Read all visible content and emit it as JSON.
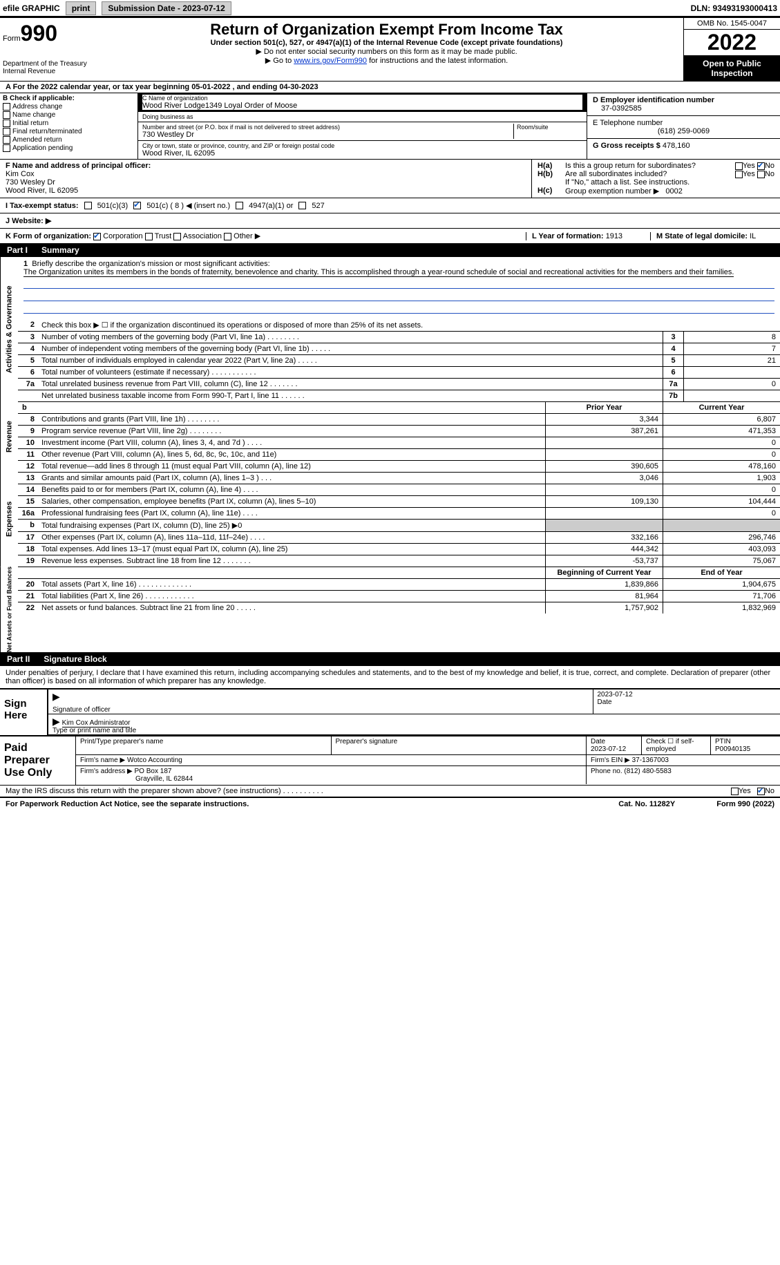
{
  "topbar": {
    "efile_label": "efile GRAPHIC",
    "print_btn": "print",
    "sub_label": "Submission Date - 2023-07-12",
    "dln_label": "DLN: 93493193000413"
  },
  "header": {
    "form_label": "Form",
    "form_num": "990",
    "dept": "Department of the Treasury\nInternal Revenue",
    "title": "Return of Organization Exempt From Income Tax",
    "sub1": "Under section 501(c), 527, or 4947(a)(1) of the Internal Revenue Code (except private foundations)",
    "sub2": "▶ Do not enter social security numbers on this form as it may be made public.",
    "sub3_pre": "▶ Go to ",
    "sub3_link": "www.irs.gov/Form990",
    "sub3_post": " for instructions and the latest information.",
    "omb": "OMB No. 1545-0047",
    "year": "2022",
    "inspect": "Open to Public Inspection"
  },
  "line_a": "A For the 2022 calendar year, or tax year beginning 05-01-2022     , and ending 04-30-2023",
  "box_b": {
    "title": "B Check if applicable:",
    "opts": [
      "Address change",
      "Name change",
      "Initial return",
      "Final return/terminated",
      "Amended return",
      "Application pending"
    ]
  },
  "box_c": {
    "name_lbl": "C Name of organization",
    "name": "Wood River Lodge1349 Loyal Order of Moose",
    "dba_lbl": "Doing business as",
    "dba": "",
    "addr_lbl": "Number and street (or P.O. box if mail is not delivered to street address)",
    "room_lbl": "Room/suite",
    "addr": "730 Westley Dr",
    "city_lbl": "City or town, state or province, country, and ZIP or foreign postal code",
    "city": "Wood River, IL  62095"
  },
  "box_d": {
    "ein_lbl": "D Employer identification number",
    "ein": "37-0392585",
    "tel_lbl": "E Telephone number",
    "tel": "(618) 259-0069",
    "gross_lbl": "G Gross receipts $",
    "gross": "478,160"
  },
  "box_f": {
    "lbl": "F  Name and address of principal officer:",
    "name": "Kim Cox",
    "addr1": "730 Wesley Dr",
    "addr2": "Wood River, IL  62095"
  },
  "box_h": {
    "ha_lbl": "H(a)",
    "ha_txt": "Is this a group return for subordinates?",
    "hb_lbl": "H(b)",
    "hb_txt": "Are all subordinates included?",
    "hb_note": "If \"No,\" attach a list. See instructions.",
    "hc_lbl": "H(c)",
    "hc_txt": "Group exemption number ▶",
    "hc_val": "0002",
    "yes": "Yes",
    "no": "No"
  },
  "row_i": {
    "lbl": "I   Tax-exempt status:",
    "o1": "501(c)(3)",
    "o2": "501(c) (",
    "o2n": "8",
    "o2b": ") ◀ (insert no.)",
    "o3": "4947(a)(1) or",
    "o4": "527"
  },
  "row_j": "J   Website: ▶",
  "row_k": {
    "lbl": "K Form of organization:",
    "o1": "Corporation",
    "o2": "Trust",
    "o3": "Association",
    "o4": "Other ▶",
    "l_lbl": "L Year of formation:",
    "l_val": "1913",
    "m_lbl": "M State of legal domicile:",
    "m_val": "IL"
  },
  "part1": {
    "num": "Part I",
    "title": "Summary"
  },
  "mission": {
    "num": "1",
    "lbl": "Briefly describe the organization's mission or most significant activities:",
    "txt": "The Organization unites its members in the bonds of fraternity, benevolence and charity. This is accomplished through a year-round schedule of social and recreational activities for the members and their families."
  },
  "line2": {
    "num": "2",
    "txt": "Check this box ▶ ☐  if the organization discontinued its operations or disposed of more than 25% of its net assets."
  },
  "gov_lines": [
    {
      "n": "3",
      "d": "Number of voting members of the governing body (Part VI, line 1a)  .   .   .   .   .   .   .   .",
      "bn": "3",
      "v": "8"
    },
    {
      "n": "4",
      "d": "Number of independent voting members of the governing body (Part VI, line 1b)  .   .   .   .   .",
      "bn": "4",
      "v": "7"
    },
    {
      "n": "5",
      "d": "Total number of individuals employed in calendar year 2022 (Part V, line 2a)  .   .   .   .   .",
      "bn": "5",
      "v": "21"
    },
    {
      "n": "6",
      "d": "Total number of volunteers (estimate if necessary)   .   .   .   .   .   .   .   .   .   .   .",
      "bn": "6",
      "v": ""
    },
    {
      "n": "7a",
      "d": "Total unrelated business revenue from Part VIII, column (C), line 12  .   .   .   .   .   .   .",
      "bn": "7a",
      "v": "0"
    },
    {
      "n": "",
      "d": "Net unrelated business taxable income from Form 990-T, Part I, line 11  .   .   .   .   .   .",
      "bn": "7b",
      "v": ""
    }
  ],
  "twocol_hdr": {
    "b": "b",
    "prior": "Prior Year",
    "curr": "Current Year"
  },
  "rev_lines": [
    {
      "n": "8",
      "d": "Contributions and grants (Part VIII, line 1h)  .   .   .   .   .   .   .   .",
      "p": "3,344",
      "c": "6,807"
    },
    {
      "n": "9",
      "d": "Program service revenue (Part VIII, line 2g)  .   .   .   .   .   .   .   .",
      "p": "387,261",
      "c": "471,353"
    },
    {
      "n": "10",
      "d": "Investment income (Part VIII, column (A), lines 3, 4, and 7d )  .   .   .   .",
      "p": "",
      "c": "0"
    },
    {
      "n": "11",
      "d": "Other revenue (Part VIII, column (A), lines 5, 6d, 8c, 9c, 10c, and 11e)",
      "p": "",
      "c": "0"
    },
    {
      "n": "12",
      "d": "Total revenue—add lines 8 through 11 (must equal Part VIII, column (A), line 12)",
      "p": "390,605",
      "c": "478,160"
    }
  ],
  "exp_lines": [
    {
      "n": "13",
      "d": "Grants and similar amounts paid (Part IX, column (A), lines 1–3 )  .   .   .",
      "p": "3,046",
      "c": "1,903"
    },
    {
      "n": "14",
      "d": "Benefits paid to or for members (Part IX, column (A), line 4)  .   .   .   .",
      "p": "",
      "c": "0"
    },
    {
      "n": "15",
      "d": "Salaries, other compensation, employee benefits (Part IX, column (A), lines 5–10)",
      "p": "109,130",
      "c": "104,444"
    },
    {
      "n": "16a",
      "d": "Professional fundraising fees (Part IX, column (A), line 11e)  .   .   .   .",
      "p": "",
      "c": "0"
    },
    {
      "n": "b",
      "d": "Total fundraising expenses (Part IX, column (D), line 25) ▶0",
      "p": "shade",
      "c": "shade"
    },
    {
      "n": "17",
      "d": "Other expenses (Part IX, column (A), lines 11a–11d, 11f–24e)  .   .   .   .",
      "p": "332,166",
      "c": "296,746"
    },
    {
      "n": "18",
      "d": "Total expenses. Add lines 13–17 (must equal Part IX, column (A), line 25)",
      "p": "444,342",
      "c": "403,093"
    },
    {
      "n": "19",
      "d": "Revenue less expenses. Subtract line 18 from line 12  .   .   .   .   .   .   .",
      "p": "-53,737",
      "c": "75,067"
    }
  ],
  "na_hdr": {
    "prior": "Beginning of Current Year",
    "curr": "End of Year"
  },
  "na_lines": [
    {
      "n": "20",
      "d": "Total assets (Part X, line 16)  .   .   .   .   .   .   .   .   .   .   .   .   .",
      "p": "1,839,866",
      "c": "1,904,675"
    },
    {
      "n": "21",
      "d": "Total liabilities (Part X, line 26)  .   .   .   .   .   .   .   .   .   .   .   .",
      "p": "81,964",
      "c": "71,706"
    },
    {
      "n": "22",
      "d": "Net assets or fund balances. Subtract line 21 from line 20  .   .   .   .   .",
      "p": "1,757,902",
      "c": "1,832,969"
    }
  ],
  "side_tabs": {
    "gov": "Activities & Governance",
    "rev": "Revenue",
    "exp": "Expenses",
    "na": "Net Assets or Fund Balances"
  },
  "part2": {
    "num": "Part II",
    "title": "Signature Block"
  },
  "sig_intro": "Under penalties of perjury, I declare that I have examined this return, including accompanying schedules and statements, and to the best of my knowledge and belief, it is true, correct, and complete. Declaration of preparer (other than officer) is based on all information of which preparer has any knowledge.",
  "sign": {
    "here": "Sign Here",
    "sig_lbl": "Signature of officer",
    "date": "2023-07-12",
    "date_lbl": "Date",
    "name": "Kim Cox  Administrator",
    "name_lbl": "Type or print name and title"
  },
  "prep": {
    "lbl": "Paid Preparer Use Only",
    "name_lbl": "Print/Type preparer's name",
    "sig_lbl": "Preparer's signature",
    "date_lbl": "Date",
    "date": "2023-07-12",
    "chk_lbl": "Check ☐ if self-employed",
    "ptin_lbl": "PTIN",
    "ptin": "P00940135",
    "firm_name_lbl": "Firm's name     ▶",
    "firm_name": "Wotco Accounting",
    "firm_ein_lbl": "Firm's EIN ▶",
    "firm_ein": "37-1367003",
    "firm_addr_lbl": "Firm's address ▶",
    "firm_addr1": "PO Box 187",
    "firm_addr2": "Grayville, IL  62844",
    "phone_lbl": "Phone no.",
    "phone": "(812) 480-5583"
  },
  "discuss": {
    "txt": "May the IRS discuss this return with the preparer shown above? (see instructions)  .   .   .   .   .   .   .   .   .   .",
    "yes": "Yes",
    "no": "No"
  },
  "paperwork": {
    "l": "For Paperwork Reduction Act Notice, see the separate instructions.",
    "m": "Cat. No. 11282Y",
    "r": "Form 990 (2022)"
  }
}
